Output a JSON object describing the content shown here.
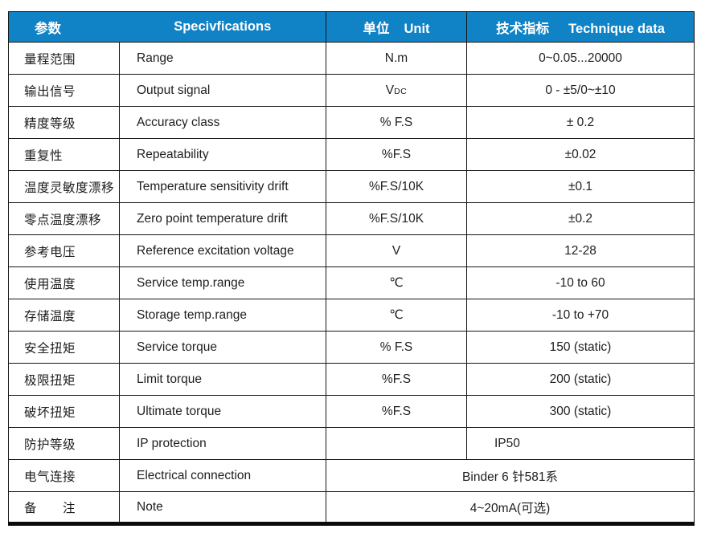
{
  "table": {
    "header": {
      "col1_cn": "参数",
      "col2_en": "Specivfications",
      "col3_cn": "单位",
      "col3_en": "Unit",
      "col4_cn": "技术指标",
      "col4_en": "Technique data"
    },
    "rows": [
      {
        "cn": "量程范围",
        "en": "Range",
        "unit": "N.m",
        "value": "0~0.05...20000"
      },
      {
        "cn": "输出信号",
        "en": "Output signal",
        "unit": "V",
        "unit_sub": "DC",
        "value": "0 - ±5/0~±10"
      },
      {
        "cn": "精度等级",
        "en": "Accuracy class",
        "unit": "% F.S",
        "value": "± 0.2"
      },
      {
        "cn": "重复性",
        "en": "Repeatability",
        "unit": "%F.S",
        "value": "±0.02"
      },
      {
        "cn": "温度灵敏度漂移",
        "en": "Temperature sensitivity drift",
        "unit": "%F.S/10K",
        "value": "±0.1"
      },
      {
        "cn": "零点温度漂移",
        "en": "Zero point temperature drift",
        "unit": "%F.S/10K",
        "value": "±0.2"
      },
      {
        "cn": "参考电压",
        "en": "Reference excitation voltage",
        "unit": "V",
        "value": "12-28"
      },
      {
        "cn": "使用温度",
        "en": "Service temp.range",
        "unit": "℃",
        "value": "-10 to 60"
      },
      {
        "cn": "存储温度",
        "en": "Storage temp.range",
        "unit": "℃",
        "value": "-10 to +70"
      },
      {
        "cn": "安全扭矩",
        "en": "Service torque",
        "unit": "% F.S",
        "value": "150 (static)"
      },
      {
        "cn": "极限扭矩",
        "en": "Limit torque",
        "unit": "%F.S",
        "value": "200 (static)"
      },
      {
        "cn": "破坏扭矩",
        "en": "Ultimate torque",
        "unit": "%F.S",
        "value": "300 (static)"
      },
      {
        "cn": "防护等级",
        "en": "IP protection",
        "unit": "",
        "value": "IP50"
      },
      {
        "cn": "电气连接",
        "en": "Electrical connection",
        "value": "Binder 6 针581系"
      },
      {
        "cn": "备　　注",
        "en": "Note",
        "value": "4~20mA(可选)"
      }
    ],
    "colors": {
      "header_bg": "#1082c6",
      "header_text": "#ffffff",
      "border": "#161616",
      "body_text": "#1e1e1e"
    }
  }
}
